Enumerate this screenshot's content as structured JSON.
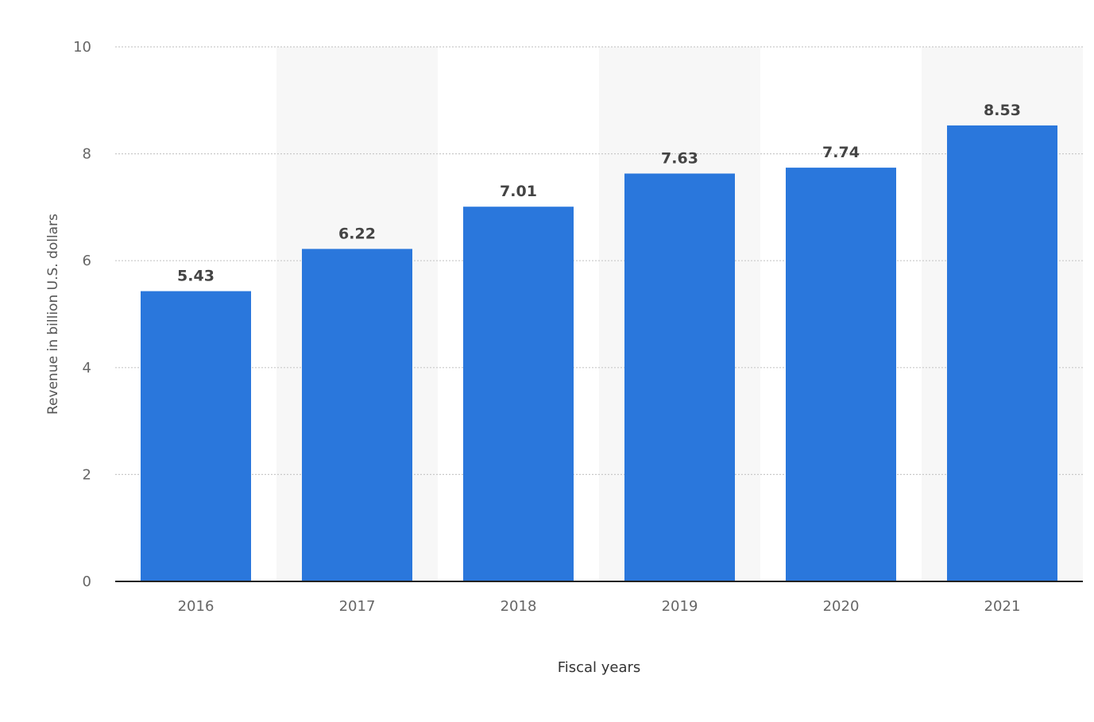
{
  "chart_data": {
    "type": "bar",
    "categories": [
      "2016",
      "2017",
      "2018",
      "2019",
      "2020",
      "2021"
    ],
    "values": [
      5.43,
      6.22,
      7.01,
      7.63,
      7.74,
      8.53
    ],
    "value_labels": [
      "5.43",
      "6.22",
      "7.01",
      "7.63",
      "7.74",
      "8.53"
    ],
    "xlabel": "Fiscal years",
    "ylabel": "Revenue in billion U.S. dollars",
    "ylim": [
      0,
      10
    ],
    "yticks": [
      0,
      2,
      4,
      6,
      8,
      10
    ],
    "ytick_labels": [
      "0",
      "2",
      "4",
      "6",
      "8",
      "10"
    ],
    "grid": true,
    "alternating_column_bands": true,
    "colors": {
      "bar": "#2a77dc",
      "band": "#f7f7f7",
      "grid": "#c9c9c9",
      "axis": "#222222"
    }
  }
}
